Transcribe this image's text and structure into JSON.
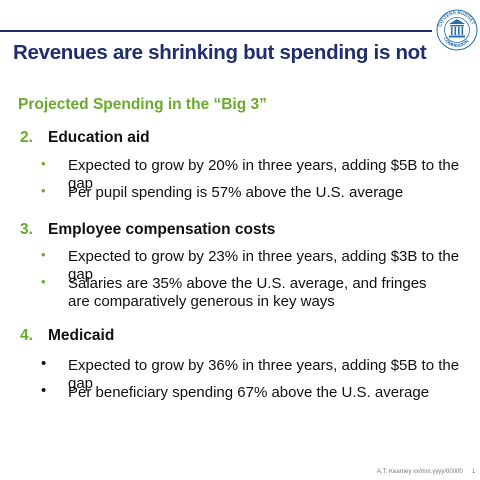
{
  "slide": {
    "title": "Revenues are shrinking but spending is not",
    "subtitle": "Projected Spending in the “Big 3”",
    "sections": [
      {
        "number": "2.",
        "heading": "Education aid",
        "bullets": [
          "Expected to grow by 20% in three years, adding $5B to the gap",
          "Per pupil spending is 57% above the U.S. average"
        ]
      },
      {
        "number": "3.",
        "heading": "Employee compensation costs",
        "bullets": [
          "Expected to grow by 23% in three years, adding $3B to the gap",
          "Salaries are 35% above the U.S. average, and fringes are comparatively generous in key ways"
        ]
      },
      {
        "number": "4.",
        "heading": "Medicaid",
        "bullets": [
          "Expected to grow by 36% in three years, adding $5B to the gap",
          "Per beneficiary spending 67% above the U.S. average"
        ]
      }
    ],
    "footer": "A.T. Kearney xx/mm.yyyy/00000",
    "page_number": "1",
    "logo_text": "CITIZENS BUDGET COMMISSION",
    "colors": {
      "title": "#1f2f6e",
      "accent_green": "#6aaa2a",
      "rule": "#1f2f6e"
    }
  }
}
